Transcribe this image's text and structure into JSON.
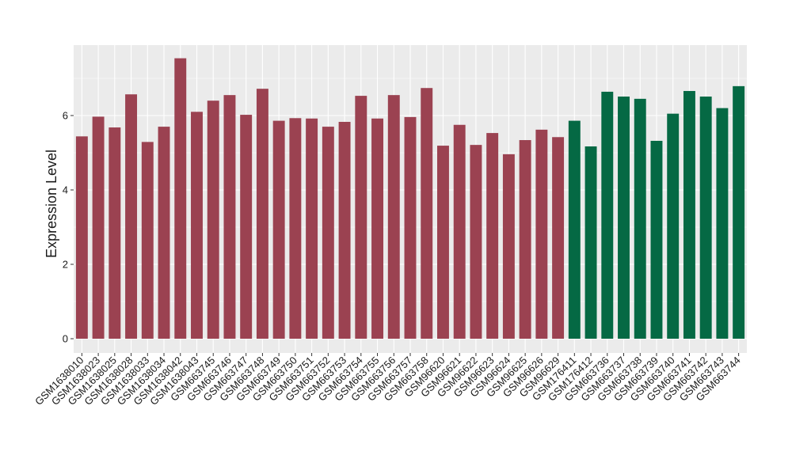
{
  "chart_data": {
    "type": "bar",
    "title": "",
    "xlabel": "",
    "ylabel": "Expression Level",
    "ylim": [
      0,
      7.8
    ],
    "yticks": [
      0,
      2,
      4,
      6
    ],
    "grid": true,
    "legend": "none",
    "colors": {
      "group1": "#9b4251",
      "group2": "#056944",
      "panel": "#ebebeb",
      "grid": "#ffffff",
      "axis": "#333333"
    },
    "categories": [
      "GSM1638010",
      "GSM1638023",
      "GSM1638025",
      "GSM1638028",
      "GSM1638033",
      "GSM1638034",
      "GSM1638042",
      "GSM1638043",
      "GSM663745",
      "GSM663746",
      "GSM663747",
      "GSM663748",
      "GSM663749",
      "GSM663750",
      "GSM663751",
      "GSM663752",
      "GSM663753",
      "GSM663754",
      "GSM663755",
      "GSM663756",
      "GSM663757",
      "GSM663758",
      "GSM96620",
      "GSM96621",
      "GSM96622",
      "GSM96623",
      "GSM96624",
      "GSM96625",
      "GSM96626",
      "GSM96629",
      "GSM176411",
      "GSM176412",
      "GSM663736",
      "GSM663737",
      "GSM663738",
      "GSM663739",
      "GSM663740",
      "GSM663741",
      "GSM663742",
      "GSM663743",
      "GSM663744"
    ],
    "values": [
      5.44,
      5.97,
      5.68,
      6.57,
      5.29,
      5.7,
      7.54,
      6.1,
      6.4,
      6.55,
      6.02,
      6.72,
      5.86,
      5.93,
      5.92,
      5.7,
      5.83,
      6.53,
      5.92,
      6.55,
      5.96,
      6.74,
      5.19,
      5.75,
      5.21,
      5.53,
      4.96,
      5.34,
      5.62,
      5.42,
      5.86,
      5.17,
      6.64,
      6.51,
      6.45,
      5.32,
      6.05,
      6.66,
      6.51,
      6.2,
      6.79
    ],
    "groups": [
      1,
      1,
      1,
      1,
      1,
      1,
      1,
      1,
      1,
      1,
      1,
      1,
      1,
      1,
      1,
      1,
      1,
      1,
      1,
      1,
      1,
      1,
      1,
      1,
      1,
      1,
      1,
      1,
      1,
      1,
      2,
      2,
      2,
      2,
      2,
      2,
      2,
      2,
      2,
      2,
      2
    ]
  }
}
